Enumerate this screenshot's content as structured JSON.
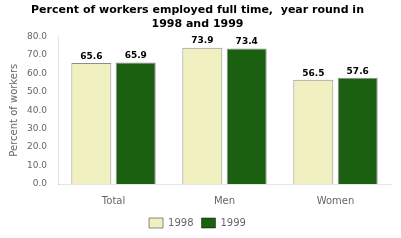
{
  "chart_data": {
    "type": "bar",
    "title": "Percent of workers employed full time,  year round in\n1998 and 1999",
    "ylabel": "Percent of workers",
    "categories": [
      "Total",
      "Men",
      "Women"
    ],
    "series": [
      {
        "name": "1998",
        "color": "#f0f0c0",
        "values": [
          65.6,
          73.9,
          56.5
        ]
      },
      {
        "name": "1999",
        "color": "#1a6010",
        "values": [
          65.9,
          73.4,
          57.6
        ]
      }
    ],
    "ylim": [
      0,
      80
    ],
    "yticks": [
      {
        "value": 0,
        "label": "0.0"
      },
      {
        "value": 10,
        "label": "10.0"
      },
      {
        "value": 20,
        "label": "20.0"
      },
      {
        "value": 30,
        "label": "30.0"
      },
      {
        "value": 40,
        "label": "40.0"
      },
      {
        "value": 50,
        "label": "50.0"
      },
      {
        "value": 60,
        "label": "60.0"
      },
      {
        "value": 70,
        "label": "70.0"
      },
      {
        "value": 80,
        "label": "80.0"
      }
    ],
    "grid": false,
    "legend": "bottom",
    "data_labels": true
  }
}
